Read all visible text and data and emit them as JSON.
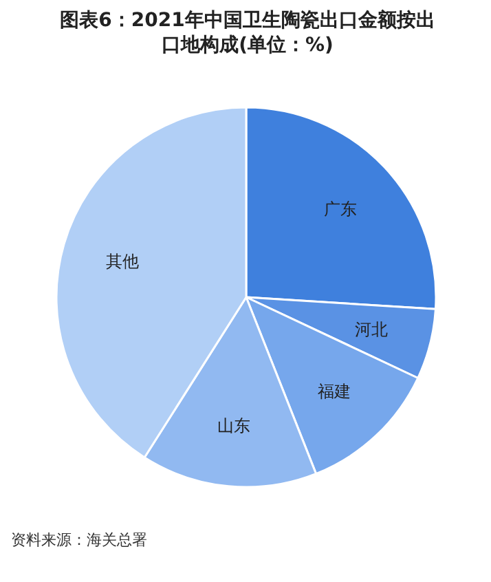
{
  "chart_data": {
    "type": "pie",
    "title": "图表6：2021年中国卫生陶瓷出口金额按出口地构成(单位：%)",
    "categories": [
      "广东",
      "河北",
      "福建",
      "山东",
      "其他"
    ],
    "values": [
      26,
      6,
      12,
      15,
      41
    ],
    "colors": [
      "#3f80dd",
      "#5a92e4",
      "#76a7ec",
      "#91b9f1",
      "#b1cff6"
    ],
    "annotations": [
      "资料来源：海关总署"
    ]
  }
}
